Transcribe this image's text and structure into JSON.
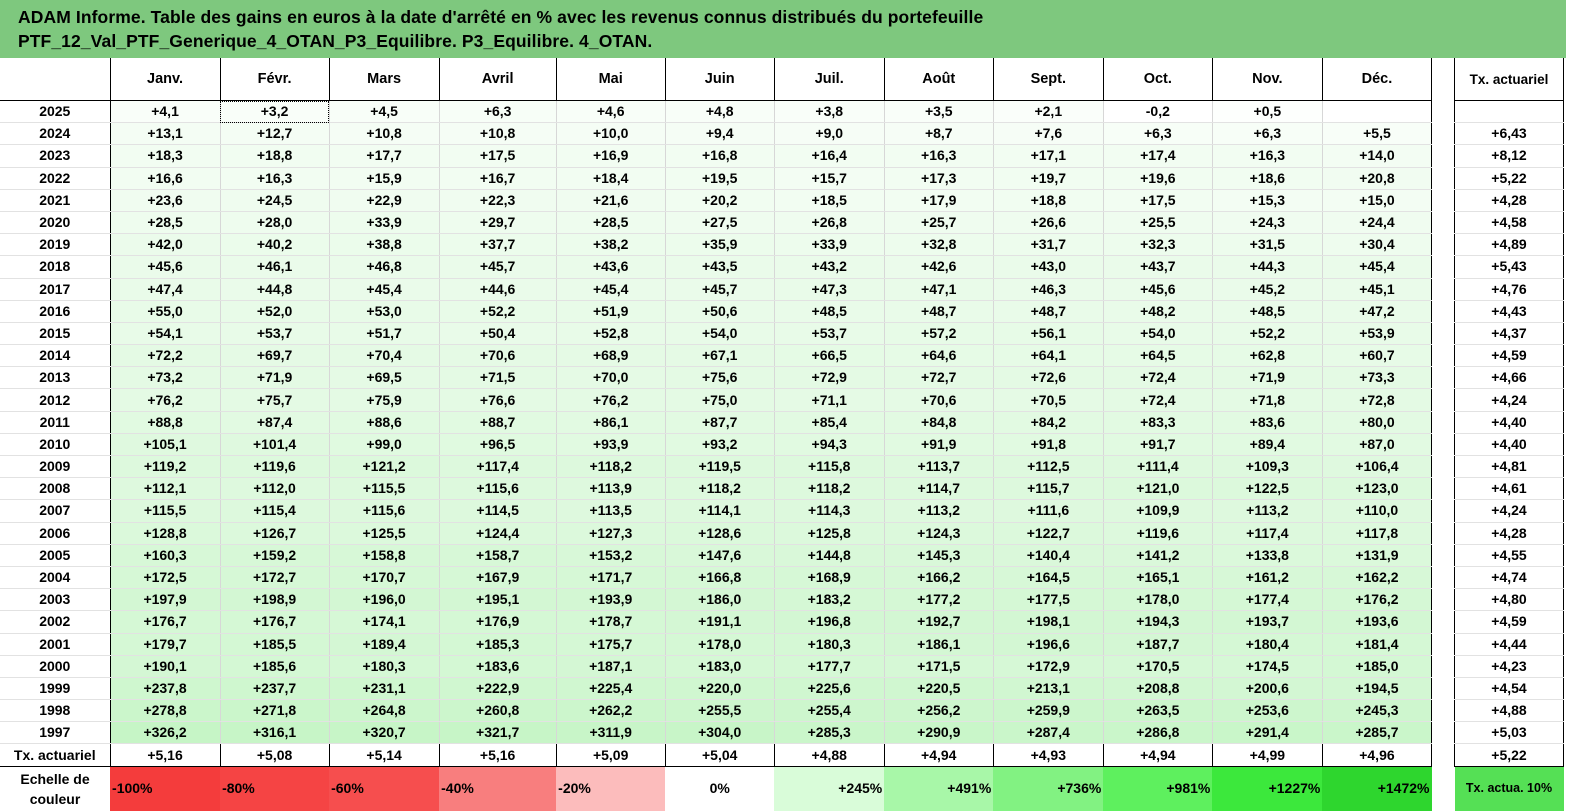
{
  "title": {
    "line1": "ADAM Informe. Table des gains en euros à la date d'arrêté en % avec les revenus connus distribués du portefeuille",
    "line2": "PTF_12_Val_PTF_Generique_4_OTAN_P3_Equilibre. P3_Equilibre. 4_OTAN."
  },
  "months": [
    "Janv.",
    "Févr.",
    "Mars",
    "Avril",
    "Mai",
    "Juin",
    "Juil.",
    "Août",
    "Sept.",
    "Oct.",
    "Nov.",
    "Déc."
  ],
  "side_header": "Tx. actuariel",
  "rows": [
    {
      "year": "2025",
      "values": [
        "+4,1",
        "+3,2",
        "+4,5",
        "+6,3",
        "+4,6",
        "+4,8",
        "+3,8",
        "+3,5",
        "+2,1",
        "-0,2",
        "+0,5",
        ""
      ],
      "rate": ""
    },
    {
      "year": "2024",
      "values": [
        "+13,1",
        "+12,7",
        "+10,8",
        "+10,8",
        "+10,0",
        "+9,4",
        "+9,0",
        "+8,7",
        "+7,6",
        "+6,3",
        "+6,3",
        "+5,5"
      ],
      "rate": "+6,43"
    },
    {
      "year": "2023",
      "values": [
        "+18,3",
        "+18,8",
        "+17,7",
        "+17,5",
        "+16,9",
        "+16,8",
        "+16,4",
        "+16,3",
        "+17,1",
        "+17,4",
        "+16,3",
        "+14,0"
      ],
      "rate": "+8,12"
    },
    {
      "year": "2022",
      "values": [
        "+16,6",
        "+16,3",
        "+15,9",
        "+16,7",
        "+18,4",
        "+19,5",
        "+15,7",
        "+17,3",
        "+19,7",
        "+19,6",
        "+18,6",
        "+20,8"
      ],
      "rate": "+5,22"
    },
    {
      "year": "2021",
      "values": [
        "+23,6",
        "+24,5",
        "+22,9",
        "+22,3",
        "+21,6",
        "+20,2",
        "+18,5",
        "+17,9",
        "+18,8",
        "+17,5",
        "+15,3",
        "+15,0"
      ],
      "rate": "+4,28"
    },
    {
      "year": "2020",
      "values": [
        "+28,5",
        "+28,0",
        "+33,9",
        "+29,7",
        "+28,5",
        "+27,5",
        "+26,8",
        "+25,7",
        "+26,6",
        "+25,5",
        "+24,3",
        "+24,4"
      ],
      "rate": "+4,58"
    },
    {
      "year": "2019",
      "values": [
        "+42,0",
        "+40,2",
        "+38,8",
        "+37,7",
        "+38,2",
        "+35,9",
        "+33,9",
        "+32,8",
        "+31,7",
        "+32,3",
        "+31,5",
        "+30,4"
      ],
      "rate": "+4,89"
    },
    {
      "year": "2018",
      "values": [
        "+45,6",
        "+46,1",
        "+46,8",
        "+45,7",
        "+43,6",
        "+43,5",
        "+43,2",
        "+42,6",
        "+43,0",
        "+43,7",
        "+44,3",
        "+45,4"
      ],
      "rate": "+5,43"
    },
    {
      "year": "2017",
      "values": [
        "+47,4",
        "+44,8",
        "+45,4",
        "+44,6",
        "+45,4",
        "+45,7",
        "+47,3",
        "+47,1",
        "+46,3",
        "+45,6",
        "+45,2",
        "+45,1"
      ],
      "rate": "+4,76"
    },
    {
      "year": "2016",
      "values": [
        "+55,0",
        "+52,0",
        "+53,0",
        "+52,2",
        "+51,9",
        "+50,6",
        "+48,5",
        "+48,7",
        "+48,7",
        "+48,2",
        "+48,5",
        "+47,2"
      ],
      "rate": "+4,43"
    },
    {
      "year": "2015",
      "values": [
        "+54,1",
        "+53,7",
        "+51,7",
        "+50,4",
        "+52,8",
        "+54,0",
        "+53,7",
        "+57,2",
        "+56,1",
        "+54,0",
        "+52,2",
        "+53,9"
      ],
      "rate": "+4,37"
    },
    {
      "year": "2014",
      "values": [
        "+72,2",
        "+69,7",
        "+70,4",
        "+70,6",
        "+68,9",
        "+67,1",
        "+66,5",
        "+64,6",
        "+64,1",
        "+64,5",
        "+62,8",
        "+60,7"
      ],
      "rate": "+4,59"
    },
    {
      "year": "2013",
      "values": [
        "+73,2",
        "+71,9",
        "+69,5",
        "+71,5",
        "+70,0",
        "+75,6",
        "+72,9",
        "+72,7",
        "+72,6",
        "+72,4",
        "+71,9",
        "+73,3"
      ],
      "rate": "+4,66"
    },
    {
      "year": "2012",
      "values": [
        "+76,2",
        "+75,7",
        "+75,9",
        "+76,6",
        "+76,2",
        "+75,0",
        "+71,1",
        "+70,6",
        "+70,5",
        "+72,4",
        "+71,8",
        "+72,8"
      ],
      "rate": "+4,24"
    },
    {
      "year": "2011",
      "values": [
        "+88,8",
        "+87,4",
        "+88,6",
        "+88,7",
        "+86,1",
        "+87,7",
        "+85,4",
        "+84,8",
        "+84,2",
        "+83,3",
        "+83,6",
        "+80,0"
      ],
      "rate": "+4,40"
    },
    {
      "year": "2010",
      "values": [
        "+105,1",
        "+101,4",
        "+99,0",
        "+96,5",
        "+93,9",
        "+93,2",
        "+94,3",
        "+91,9",
        "+91,8",
        "+91,7",
        "+89,4",
        "+87,0"
      ],
      "rate": "+4,40"
    },
    {
      "year": "2009",
      "values": [
        "+119,2",
        "+119,6",
        "+121,2",
        "+117,4",
        "+118,2",
        "+119,5",
        "+115,8",
        "+113,7",
        "+112,5",
        "+111,4",
        "+109,3",
        "+106,4"
      ],
      "rate": "+4,81"
    },
    {
      "year": "2008",
      "values": [
        "+112,1",
        "+112,0",
        "+115,5",
        "+115,6",
        "+113,9",
        "+118,2",
        "+118,2",
        "+114,7",
        "+115,7",
        "+121,0",
        "+122,5",
        "+123,0"
      ],
      "rate": "+4,61"
    },
    {
      "year": "2007",
      "values": [
        "+115,5",
        "+115,4",
        "+115,6",
        "+114,5",
        "+113,5",
        "+114,1",
        "+114,3",
        "+113,2",
        "+111,6",
        "+109,9",
        "+113,2",
        "+110,0"
      ],
      "rate": "+4,24"
    },
    {
      "year": "2006",
      "values": [
        "+128,8",
        "+126,7",
        "+125,5",
        "+124,4",
        "+127,3",
        "+128,6",
        "+125,8",
        "+124,3",
        "+122,7",
        "+119,6",
        "+117,4",
        "+117,8"
      ],
      "rate": "+4,28"
    },
    {
      "year": "2005",
      "values": [
        "+160,3",
        "+159,2",
        "+158,8",
        "+158,7",
        "+153,2",
        "+147,6",
        "+144,8",
        "+145,3",
        "+140,4",
        "+141,2",
        "+133,8",
        "+131,9"
      ],
      "rate": "+4,55"
    },
    {
      "year": "2004",
      "values": [
        "+172,5",
        "+172,7",
        "+170,7",
        "+167,9",
        "+171,7",
        "+166,8",
        "+168,9",
        "+166,2",
        "+164,5",
        "+165,1",
        "+161,2",
        "+162,2"
      ],
      "rate": "+4,74"
    },
    {
      "year": "2003",
      "values": [
        "+197,9",
        "+198,9",
        "+196,0",
        "+195,1",
        "+193,9",
        "+186,0",
        "+183,2",
        "+177,2",
        "+177,5",
        "+178,0",
        "+177,4",
        "+176,2"
      ],
      "rate": "+4,80"
    },
    {
      "year": "2002",
      "values": [
        "+176,7",
        "+176,7",
        "+174,1",
        "+176,9",
        "+178,7",
        "+191,1",
        "+196,8",
        "+192,7",
        "+198,1",
        "+194,3",
        "+193,7",
        "+193,6"
      ],
      "rate": "+4,59"
    },
    {
      "year": "2001",
      "values": [
        "+179,7",
        "+185,5",
        "+189,4",
        "+185,3",
        "+175,7",
        "+178,0",
        "+180,3",
        "+186,1",
        "+196,6",
        "+187,7",
        "+180,4",
        "+181,4"
      ],
      "rate": "+4,44"
    },
    {
      "year": "2000",
      "values": [
        "+190,1",
        "+185,6",
        "+180,3",
        "+183,6",
        "+187,1",
        "+183,0",
        "+177,7",
        "+171,5",
        "+172,9",
        "+170,5",
        "+174,5",
        "+185,0"
      ],
      "rate": "+4,23"
    },
    {
      "year": "1999",
      "values": [
        "+237,8",
        "+237,7",
        "+231,1",
        "+222,9",
        "+225,4",
        "+220,0",
        "+225,6",
        "+220,5",
        "+213,1",
        "+208,8",
        "+200,6",
        "+194,5"
      ],
      "rate": "+4,54"
    },
    {
      "year": "1998",
      "values": [
        "+278,8",
        "+271,8",
        "+264,8",
        "+260,8",
        "+262,2",
        "+255,5",
        "+255,4",
        "+256,2",
        "+259,9",
        "+263,5",
        "+253,6",
        "+245,3"
      ],
      "rate": "+4,88"
    },
    {
      "year": "1997",
      "values": [
        "+326,2",
        "+316,1",
        "+320,7",
        "+321,7",
        "+311,9",
        "+304,0",
        "+285,3",
        "+290,9",
        "+287,4",
        "+286,8",
        "+291,4",
        "+285,7"
      ],
      "rate": "+5,03"
    }
  ],
  "averages": {
    "label": "Tx. actuariel",
    "values": [
      "+5,16",
      "+5,08",
      "+5,14",
      "+5,16",
      "+5,09",
      "+5,04",
      "+4,88",
      "+4,94",
      "+4,93",
      "+4,94",
      "+4,99",
      "+4,96"
    ],
    "rate": "+5,22"
  },
  "scale": {
    "label": "Echelle de couleur",
    "items": [
      {
        "label": "-100%",
        "color": "#f43c3c"
      },
      {
        "label": "-80%",
        "color": "#f54444"
      },
      {
        "label": "-60%",
        "color": "#f64e4e"
      },
      {
        "label": "-40%",
        "color": "#f87e7e"
      },
      {
        "label": "-20%",
        "color": "#fcbcbc"
      },
      {
        "label": "0%",
        "color": "#ffffff"
      },
      {
        "label": "+245%",
        "color": "#d9fcd9"
      },
      {
        "label": "+491%",
        "color": "#a8f7a8"
      },
      {
        "label": "+736%",
        "color": "#82f282"
      },
      {
        "label": "+981%",
        "color": "#5ef05e"
      },
      {
        "label": "+1227%",
        "color": "#3ce83c"
      },
      {
        "label": "+1472%",
        "color": "#2ed62e"
      }
    ],
    "side_label": "Tx. actua. 10%"
  },
  "colors": {
    "title_bg": "#7ec87e",
    "heat_low": "#ffffff",
    "heat_high": "#c6f5c6"
  }
}
